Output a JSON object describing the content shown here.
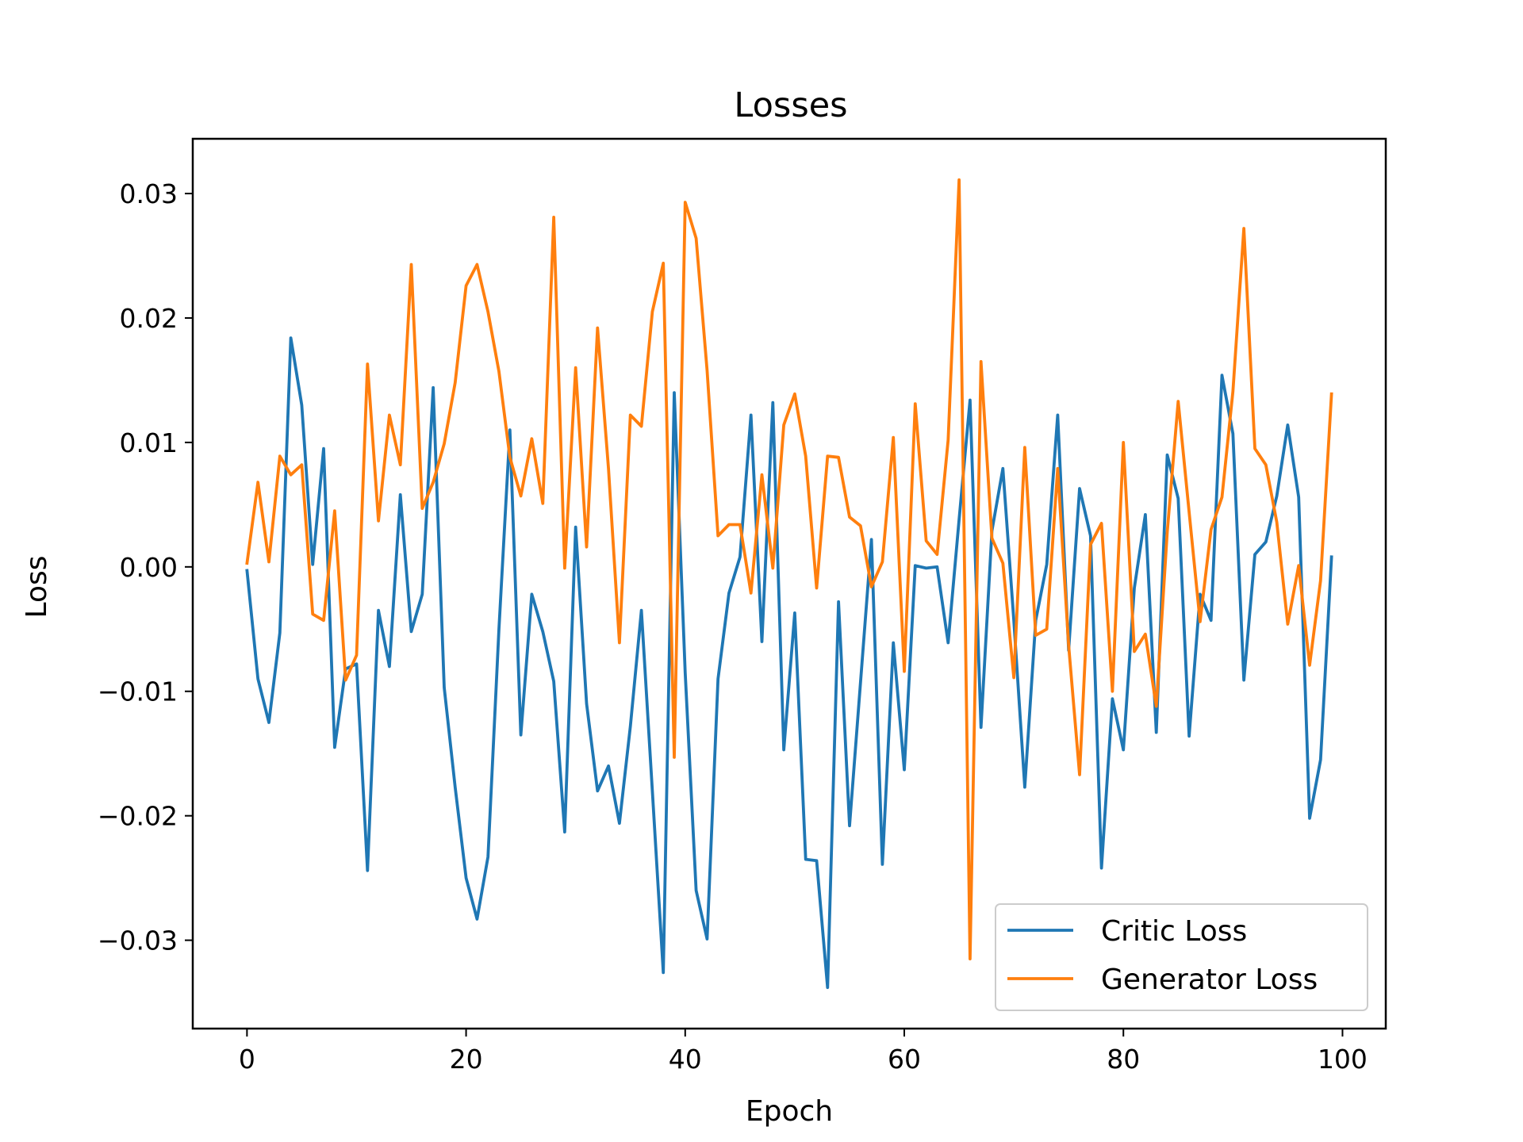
{
  "chart_data": {
    "type": "line",
    "title": "Losses",
    "xlabel": "Epoch",
    "ylabel": "Loss",
    "xlim": [
      -4.95,
      103.95
    ],
    "ylim": [
      -0.0371,
      0.0344
    ],
    "xticks": [
      0,
      20,
      40,
      60,
      80,
      100
    ],
    "xtick_labels": [
      "0",
      "20",
      "40",
      "60",
      "80",
      "100"
    ],
    "yticks": [
      -0.03,
      -0.02,
      -0.01,
      0.0,
      0.01,
      0.02,
      0.03
    ],
    "ytick_labels": [
      "−0.03",
      "−0.02",
      "−0.01",
      "0.00",
      "0.01",
      "0.02",
      "0.03"
    ],
    "grid": false,
    "legend_position": "lower-right",
    "x": [
      0,
      1,
      2,
      3,
      4,
      5,
      6,
      7,
      8,
      9,
      10,
      11,
      12,
      13,
      14,
      15,
      16,
      17,
      18,
      19,
      20,
      21,
      22,
      23,
      24,
      25,
      26,
      27,
      28,
      29,
      30,
      31,
      32,
      33,
      34,
      35,
      36,
      37,
      38,
      39,
      40,
      41,
      42,
      43,
      44,
      45,
      46,
      47,
      48,
      49,
      50,
      51,
      52,
      53,
      54,
      55,
      56,
      57,
      58,
      59,
      60,
      61,
      62,
      63,
      64,
      65,
      66,
      67,
      68,
      69,
      70,
      71,
      72,
      73,
      74,
      75,
      76,
      77,
      78,
      79,
      80,
      81,
      82,
      83,
      84,
      85,
      86,
      87,
      88,
      89,
      90,
      91,
      92,
      93,
      94,
      95,
      96,
      97,
      98,
      99
    ],
    "series": [
      {
        "name": "Critic Loss",
        "color": "#1f77b4",
        "values": [
          -0.0003,
          -0.009,
          -0.0125,
          -0.0053,
          0.0184,
          0.013,
          0.0002,
          0.0095,
          -0.0145,
          -0.0082,
          -0.0078,
          -0.0244,
          -0.0035,
          -0.008,
          0.0058,
          -0.0052,
          -0.0022,
          0.0144,
          -0.0097,
          -0.0177,
          -0.025,
          -0.0283,
          -0.0233,
          -0.005,
          0.011,
          -0.0135,
          -0.0022,
          -0.0052,
          -0.0092,
          -0.0213,
          0.0032,
          -0.011,
          -0.018,
          -0.016,
          -0.0206,
          -0.0128,
          -0.0035,
          -0.018,
          -0.0326,
          0.014,
          -0.0085,
          -0.026,
          -0.0299,
          -0.009,
          -0.0021,
          0.0008,
          0.0122,
          -0.006,
          0.0132,
          -0.0147,
          -0.0037,
          -0.0235,
          -0.0236,
          -0.0338,
          -0.0028,
          -0.0208,
          -0.0093,
          0.0022,
          -0.0239,
          -0.0061,
          -0.0163,
          0.0001,
          -0.0001,
          0.0,
          -0.0061,
          0.0038,
          0.0134,
          -0.0129,
          0.0029,
          0.0079,
          -0.0043,
          -0.0177,
          -0.0043,
          0.0002,
          0.0122,
          -0.0067,
          0.0063,
          0.0025,
          -0.0242,
          -0.0106,
          -0.0147,
          -0.0017,
          0.0042,
          -0.0133,
          0.009,
          0.0055,
          -0.0136,
          -0.0022,
          -0.0043,
          0.0154,
          0.0107,
          -0.0091,
          0.001,
          0.002,
          0.0057,
          0.0114,
          0.0056,
          -0.0202,
          -0.0155,
          0.0008
        ]
      },
      {
        "name": "Generator Loss",
        "color": "#ff7f0e",
        "values": [
          0.0003,
          0.0068,
          0.0004,
          0.0089,
          0.0074,
          0.0082,
          -0.0038,
          -0.0043,
          0.0045,
          -0.0091,
          -0.0071,
          0.0163,
          0.0037,
          0.0122,
          0.0082,
          0.0243,
          0.0047,
          0.0068,
          0.0099,
          0.0148,
          0.0226,
          0.0243,
          0.0205,
          0.0157,
          0.0088,
          0.0057,
          0.0103,
          0.0051,
          0.0281,
          -0.0001,
          0.016,
          0.0016,
          0.0192,
          0.0079,
          -0.0061,
          0.0122,
          0.0113,
          0.0205,
          0.0244,
          -0.0153,
          0.0293,
          0.0264,
          0.0158,
          0.0025,
          0.0034,
          0.0034,
          -0.0021,
          0.0074,
          -0.0001,
          0.0114,
          0.0139,
          0.0089,
          -0.0017,
          0.0089,
          0.0088,
          0.004,
          0.0033,
          -0.0016,
          0.0004,
          0.0104,
          -0.0084,
          0.0131,
          0.0021,
          0.001,
          0.0102,
          0.0311,
          -0.0315,
          0.0165,
          0.0023,
          0.0003,
          -0.0089,
          0.0096,
          -0.0055,
          -0.005,
          0.0079,
          -0.0063,
          -0.0167,
          0.0018,
          0.0035,
          -0.01,
          0.01,
          -0.0068,
          -0.0054,
          -0.0112,
          0.0028,
          0.0133,
          0.0044,
          -0.0044,
          0.003,
          0.0056,
          0.0141,
          0.0272,
          0.0095,
          0.0082,
          0.0036,
          -0.0046,
          0.0001,
          -0.0079,
          -0.0011,
          0.0139
        ]
      }
    ]
  }
}
